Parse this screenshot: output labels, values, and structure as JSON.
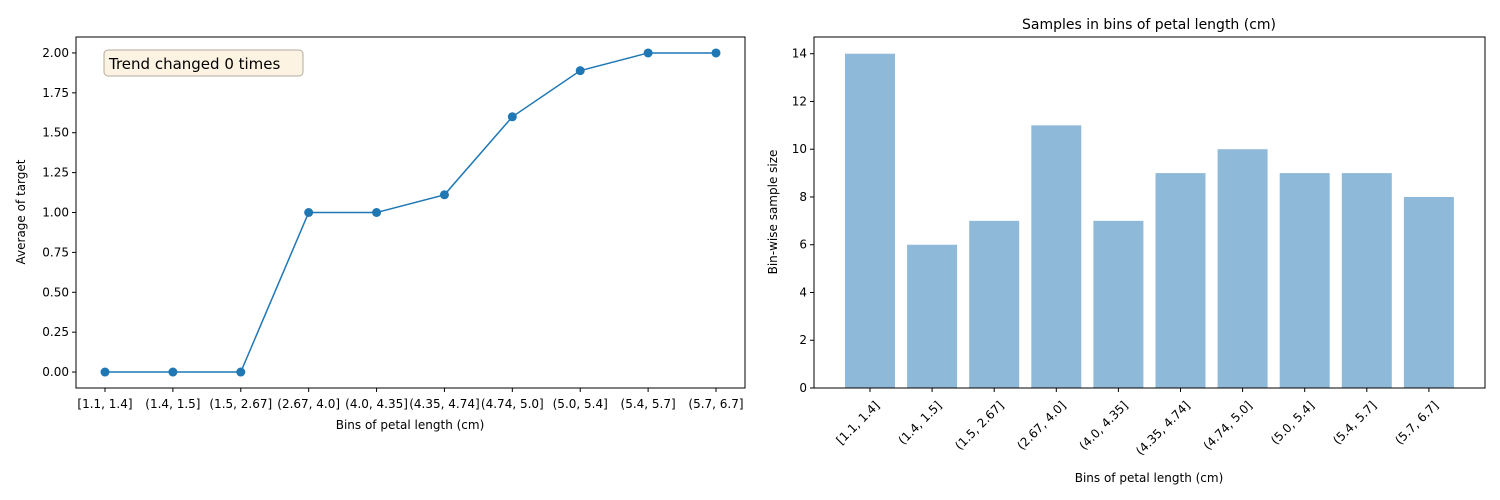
{
  "chart_data": [
    {
      "type": "line",
      "title": "",
      "xlabel": "Bins of petal length (cm)",
      "ylabel": "Average of target",
      "categories": [
        "[1.1,  1.4]",
        "(1.4, 1.5]",
        "(1.5, 2.67]",
        "(2.67, 4.0]",
        "(4.0, 4.35]",
        "(4.35, 4.74]",
        "(4.74, 5.0]",
        "(5.0, 5.4]",
        "(5.4, 5.7]",
        "(5.7, 6.7]"
      ],
      "values": [
        0.0,
        0.0,
        0.0,
        1.0,
        1.0,
        1.111,
        1.6,
        1.889,
        2.0,
        2.0
      ],
      "ylim": [
        -0.1,
        2.1
      ],
      "yticks": [
        "0.00",
        "0.25",
        "0.50",
        "0.75",
        "1.00",
        "1.25",
        "1.50",
        "1.75",
        "2.00"
      ],
      "annotation": "Trend changed 0 times",
      "legend": "none",
      "grid": false,
      "colors": {
        "line": "#1f77b4",
        "annotation_bg": "#fdf3e3",
        "annotation_border": "#b5ab9e"
      }
    },
    {
      "type": "bar",
      "title": "Samples in bins of petal length (cm)",
      "xlabel": "Bins of petal length (cm)",
      "ylabel": "Bin-wise sample size",
      "categories": [
        "[1.1,  1.4]",
        "(1.4, 1.5]",
        "(1.5, 2.67]",
        "(2.67, 4.0]",
        "(4.0, 4.35]",
        "(4.35, 4.74]",
        "(4.74, 5.0]",
        "(5.0, 5.4]",
        "(5.4, 5.7]",
        "(5.7, 6.7]"
      ],
      "values": [
        14,
        6,
        7,
        11,
        7,
        9,
        10,
        9,
        9,
        8
      ],
      "ylim": [
        0,
        14.7
      ],
      "yticks": [
        "0",
        "2",
        "4",
        "6",
        "8",
        "10",
        "12",
        "14"
      ],
      "tick_rotation": 45,
      "legend": "none",
      "grid": false,
      "colors": {
        "bar": "#8fb9d9"
      }
    }
  ]
}
